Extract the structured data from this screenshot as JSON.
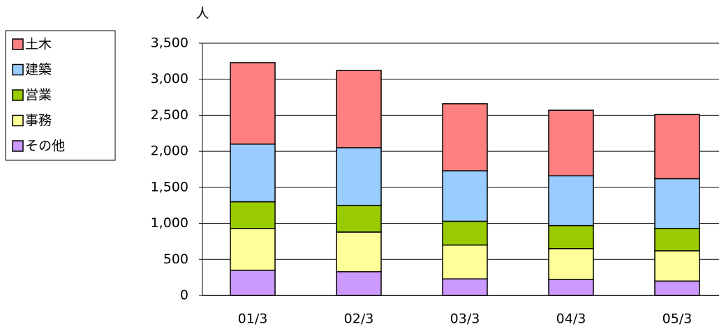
{
  "chart_data": {
    "type": "stacked-bar",
    "y_axis_label": "人",
    "categories": [
      "01/3",
      "02/3",
      "03/3",
      "04/3",
      "05/3"
    ],
    "series": [
      {
        "name": "その他",
        "color": "#cc99ff",
        "values": [
          350,
          330,
          230,
          220,
          200
        ]
      },
      {
        "name": "事務",
        "color": "#ffff99",
        "values": [
          580,
          550,
          470,
          430,
          420
        ]
      },
      {
        "name": "営業",
        "color": "#99cc00",
        "values": [
          370,
          370,
          330,
          320,
          310
        ]
      },
      {
        "name": "建築",
        "color": "#99ccff",
        "values": [
          800,
          800,
          700,
          690,
          690
        ]
      },
      {
        "name": "土木",
        "color": "#ff8080",
        "values": [
          1130,
          1070,
          930,
          910,
          890
        ]
      }
    ],
    "ylim": [
      0,
      3500
    ],
    "yticks": [
      0,
      500,
      {
        "value": 1000,
        "label": "1,000"
      },
      {
        "value": 1500,
        "label": "1,500"
      },
      {
        "value": 2000,
        "label": "2,000"
      },
      {
        "value": 2500,
        "label": "2,500"
      },
      {
        "value": 3000,
        "label": "3,000"
      },
      {
        "value": 3500,
        "label": "3,500"
      }
    ],
    "grid": true,
    "legend": "left"
  }
}
